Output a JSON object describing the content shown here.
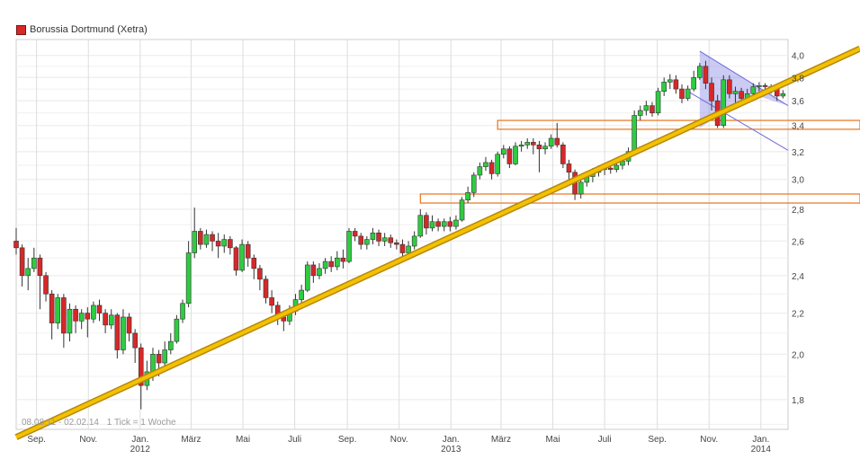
{
  "legend": {
    "label": "Borussia Dortmund (Xetra)",
    "color": "#d62828"
  },
  "footer": {
    "range": "08.08.11 - 02.02.14",
    "tick": "1 Tick = 1 Woche"
  },
  "colors": {
    "up": "#2ecc40",
    "down": "#d62828",
    "trend": "#f2c200",
    "triangle": "#6b6be0",
    "resistance": "#e8731a",
    "grid": "#dddddd"
  },
  "chart_data": {
    "type": "candlestick",
    "title": "Borussia Dortmund (Xetra)",
    "y_axis": {
      "scale": "log",
      "ticks": [
        "1,8",
        "2,0",
        "2,2",
        "2,4",
        "2,6",
        "2,8",
        "3,0",
        "3,2",
        "3,4",
        "3,6",
        "3,8",
        "4,0"
      ],
      "tick_values": [
        1.8,
        2.0,
        2.2,
        2.4,
        2.6,
        2.8,
        3.0,
        3.2,
        3.4,
        3.6,
        3.8,
        4.0
      ],
      "range": [
        1.68,
        4.15
      ]
    },
    "x_axis": {
      "ticks": [
        {
          "label": "Sep.",
          "date": "2011-09-01"
        },
        {
          "label": "Nov.",
          "date": "2011-11-01"
        },
        {
          "label": "Jan.",
          "sub": "2012",
          "date": "2012-01-01"
        },
        {
          "label": "März",
          "date": "2012-03-01"
        },
        {
          "label": "Mai",
          "date": "2012-05-01"
        },
        {
          "label": "Juli",
          "date": "2012-07-01"
        },
        {
          "label": "Sep.",
          "date": "2012-09-01"
        },
        {
          "label": "Nov.",
          "date": "2012-11-01"
        },
        {
          "label": "Jan.",
          "sub": "2013",
          "date": "2013-01-01"
        },
        {
          "label": "März",
          "date": "2013-03-01"
        },
        {
          "label": "Mai",
          "date": "2013-05-01"
        },
        {
          "label": "Juli",
          "date": "2013-07-01"
        },
        {
          "label": "Sep.",
          "date": "2013-09-01"
        },
        {
          "label": "Nov.",
          "date": "2013-11-01"
        },
        {
          "label": "Jan.",
          "sub": "2014",
          "date": "2014-01-01"
        }
      ],
      "range": [
        "2011-08-08",
        "2014-02-02"
      ]
    },
    "candles": [
      [
        "2011-08-08",
        2.6,
        2.56,
        2.68,
        2.52
      ],
      [
        "2011-08-15",
        2.56,
        2.4,
        2.58,
        2.34
      ],
      [
        "2011-08-22",
        2.4,
        2.44,
        2.5,
        2.32
      ],
      [
        "2011-08-29",
        2.44,
        2.5,
        2.56,
        2.42
      ],
      [
        "2011-09-05",
        2.5,
        2.4,
        2.52,
        2.22
      ],
      [
        "2011-09-12",
        2.4,
        2.3,
        2.42,
        2.26
      ],
      [
        "2011-09-19",
        2.3,
        2.15,
        2.32,
        2.07
      ],
      [
        "2011-09-26",
        2.15,
        2.28,
        2.3,
        2.12
      ],
      [
        "2011-10-03",
        2.28,
        2.1,
        2.3,
        2.03
      ],
      [
        "2011-10-10",
        2.1,
        2.22,
        2.25,
        2.06
      ],
      [
        "2011-10-17",
        2.22,
        2.16,
        2.24,
        2.1
      ],
      [
        "2011-10-24",
        2.16,
        2.2,
        2.22,
        2.12
      ],
      [
        "2011-10-31",
        2.2,
        2.17,
        2.23,
        2.08
      ],
      [
        "2011-11-07",
        2.17,
        2.24,
        2.26,
        2.15
      ],
      [
        "2011-11-14",
        2.24,
        2.2,
        2.27,
        2.16
      ],
      [
        "2011-11-21",
        2.2,
        2.14,
        2.22,
        2.1
      ],
      [
        "2011-11-28",
        2.14,
        2.19,
        2.22,
        2.12
      ],
      [
        "2011-12-05",
        2.19,
        2.02,
        2.2,
        1.98
      ],
      [
        "2011-12-12",
        2.02,
        2.18,
        2.22,
        2.0
      ],
      [
        "2011-12-19",
        2.18,
        2.1,
        2.2,
        2.06
      ],
      [
        "2011-12-26",
        2.1,
        2.03,
        2.12,
        1.96
      ],
      [
        "2012-01-02",
        2.03,
        1.86,
        2.05,
        1.76
      ],
      [
        "2012-01-09",
        1.86,
        1.92,
        1.97,
        1.84
      ],
      [
        "2012-01-16",
        1.92,
        2.0,
        2.03,
        1.88
      ],
      [
        "2012-01-23",
        2.0,
        1.96,
        2.02,
        1.9
      ],
      [
        "2012-01-30",
        1.96,
        2.02,
        2.06,
        1.94
      ],
      [
        "2012-02-06",
        2.02,
        2.06,
        2.1,
        2.0
      ],
      [
        "2012-02-13",
        2.06,
        2.17,
        2.19,
        2.05
      ],
      [
        "2012-02-20",
        2.17,
        2.25,
        2.27,
        2.15
      ],
      [
        "2012-02-27",
        2.25,
        2.53,
        2.6,
        2.23
      ],
      [
        "2012-03-05",
        2.53,
        2.66,
        2.81,
        2.5
      ],
      [
        "2012-03-12",
        2.66,
        2.58,
        2.68,
        2.55
      ],
      [
        "2012-03-19",
        2.58,
        2.64,
        2.67,
        2.56
      ],
      [
        "2012-03-26",
        2.64,
        2.6,
        2.66,
        2.54
      ],
      [
        "2012-04-02",
        2.6,
        2.57,
        2.65,
        2.5
      ],
      [
        "2012-04-09",
        2.57,
        2.61,
        2.64,
        2.53
      ],
      [
        "2012-04-16",
        2.61,
        2.56,
        2.63,
        2.52
      ],
      [
        "2012-04-23",
        2.56,
        2.43,
        2.57,
        2.4
      ],
      [
        "2012-04-30",
        2.43,
        2.58,
        2.61,
        2.42
      ],
      [
        "2012-05-07",
        2.58,
        2.5,
        2.6,
        2.45
      ],
      [
        "2012-05-14",
        2.5,
        2.44,
        2.52,
        2.38
      ],
      [
        "2012-05-21",
        2.44,
        2.38,
        2.46,
        2.32
      ],
      [
        "2012-05-28",
        2.38,
        2.28,
        2.4,
        2.25
      ],
      [
        "2012-06-04",
        2.28,
        2.24,
        2.32,
        2.2
      ],
      [
        "2012-06-11",
        2.24,
        2.18,
        2.26,
        2.14
      ],
      [
        "2012-06-18",
        2.18,
        2.16,
        2.2,
        2.11
      ],
      [
        "2012-06-25",
        2.16,
        2.21,
        2.24,
        2.14
      ],
      [
        "2012-07-02",
        2.21,
        2.27,
        2.3,
        2.19
      ],
      [
        "2012-07-09",
        2.27,
        2.32,
        2.35,
        2.24
      ],
      [
        "2012-07-16",
        2.32,
        2.46,
        2.48,
        2.31
      ],
      [
        "2012-07-23",
        2.46,
        2.4,
        2.48,
        2.36
      ],
      [
        "2012-07-30",
        2.4,
        2.44,
        2.47,
        2.38
      ],
      [
        "2012-08-06",
        2.44,
        2.48,
        2.5,
        2.41
      ],
      [
        "2012-08-13",
        2.48,
        2.45,
        2.51,
        2.42
      ],
      [
        "2012-08-20",
        2.45,
        2.5,
        2.54,
        2.43
      ],
      [
        "2012-08-27",
        2.5,
        2.48,
        2.55,
        2.44
      ],
      [
        "2012-09-03",
        2.48,
        2.66,
        2.68,
        2.47
      ],
      [
        "2012-09-10",
        2.66,
        2.63,
        2.68,
        2.6
      ],
      [
        "2012-09-17",
        2.63,
        2.58,
        2.65,
        2.55
      ],
      [
        "2012-09-24",
        2.58,
        2.61,
        2.63,
        2.55
      ],
      [
        "2012-10-01",
        2.61,
        2.65,
        2.68,
        2.58
      ],
      [
        "2012-10-08",
        2.65,
        2.6,
        2.67,
        2.57
      ],
      [
        "2012-10-15",
        2.6,
        2.62,
        2.65,
        2.57
      ],
      [
        "2012-10-22",
        2.62,
        2.59,
        2.64,
        2.56
      ],
      [
        "2012-10-29",
        2.59,
        2.58,
        2.61,
        2.55
      ],
      [
        "2012-11-05",
        2.58,
        2.53,
        2.61,
        2.48
      ],
      [
        "2012-11-12",
        2.53,
        2.57,
        2.6,
        2.52
      ],
      [
        "2012-11-19",
        2.57,
        2.63,
        2.66,
        2.55
      ],
      [
        "2012-11-26",
        2.63,
        2.76,
        2.8,
        2.62
      ],
      [
        "2012-12-03",
        2.76,
        2.68,
        2.78,
        2.64
      ],
      [
        "2012-12-10",
        2.68,
        2.72,
        2.76,
        2.66
      ],
      [
        "2012-12-17",
        2.72,
        2.69,
        2.74,
        2.66
      ],
      [
        "2012-12-24",
        2.69,
        2.72,
        2.74,
        2.66
      ],
      [
        "2012-12-31",
        2.72,
        2.69,
        2.75,
        2.66
      ],
      [
        "2013-01-07",
        2.69,
        2.73,
        2.76,
        2.67
      ],
      [
        "2013-01-14",
        2.73,
        2.86,
        2.88,
        2.72
      ],
      [
        "2013-01-21",
        2.86,
        2.91,
        2.95,
        2.84
      ],
      [
        "2013-01-28",
        2.91,
        3.03,
        3.05,
        2.88
      ],
      [
        "2013-02-04",
        3.03,
        3.09,
        3.12,
        3.0
      ],
      [
        "2013-02-11",
        3.09,
        3.12,
        3.16,
        3.06
      ],
      [
        "2013-02-18",
        3.12,
        3.04,
        3.14,
        3.0
      ],
      [
        "2013-02-25",
        3.04,
        3.18,
        3.2,
        3.02
      ],
      [
        "2013-03-04",
        3.18,
        3.22,
        3.25,
        3.15
      ],
      [
        "2013-03-11",
        3.22,
        3.11,
        3.24,
        3.08
      ],
      [
        "2013-03-18",
        3.11,
        3.24,
        3.27,
        3.1
      ],
      [
        "2013-03-25",
        3.24,
        3.25,
        3.28,
        3.2
      ],
      [
        "2013-04-01",
        3.25,
        3.27,
        3.3,
        3.22
      ],
      [
        "2013-04-08",
        3.27,
        3.25,
        3.3,
        3.18
      ],
      [
        "2013-04-15",
        3.25,
        3.22,
        3.28,
        3.05
      ],
      [
        "2013-04-22",
        3.22,
        3.24,
        3.27,
        3.18
      ],
      [
        "2013-04-29",
        3.24,
        3.3,
        3.33,
        3.22
      ],
      [
        "2013-05-06",
        3.3,
        3.25,
        3.42,
        3.23
      ],
      [
        "2013-05-13",
        3.25,
        3.11,
        3.27,
        3.08
      ],
      [
        "2013-05-20",
        3.11,
        3.05,
        3.14,
        3.0
      ],
      [
        "2013-05-27",
        3.05,
        2.9,
        3.07,
        2.86
      ],
      [
        "2013-06-03",
        2.9,
        2.98,
        3.01,
        2.87
      ],
      [
        "2013-06-10",
        2.98,
        3.02,
        3.05,
        2.95
      ],
      [
        "2013-06-17",
        3.02,
        3.05,
        3.08,
        2.98
      ],
      [
        "2013-06-24",
        3.05,
        3.07,
        3.1,
        3.02
      ],
      [
        "2013-07-01",
        3.07,
        3.08,
        3.11,
        3.03
      ],
      [
        "2013-07-08",
        3.08,
        3.07,
        3.11,
        3.04
      ],
      [
        "2013-07-15",
        3.07,
        3.1,
        3.13,
        3.05
      ],
      [
        "2013-07-22",
        3.1,
        3.13,
        3.16,
        3.07
      ],
      [
        "2013-07-29",
        3.13,
        3.2,
        3.23,
        3.1
      ],
      [
        "2013-08-05",
        3.2,
        3.48,
        3.52,
        3.18
      ],
      [
        "2013-08-12",
        3.48,
        3.52,
        3.56,
        3.44
      ],
      [
        "2013-08-19",
        3.52,
        3.56,
        3.6,
        3.48
      ],
      [
        "2013-08-26",
        3.56,
        3.5,
        3.59,
        3.47
      ],
      [
        "2013-09-02",
        3.5,
        3.68,
        3.71,
        3.48
      ],
      [
        "2013-09-09",
        3.68,
        3.76,
        3.8,
        3.64
      ],
      [
        "2013-09-16",
        3.76,
        3.78,
        3.83,
        3.7
      ],
      [
        "2013-09-23",
        3.78,
        3.7,
        3.82,
        3.66
      ],
      [
        "2013-09-30",
        3.7,
        3.62,
        3.74,
        3.58
      ],
      [
        "2013-10-07",
        3.62,
        3.7,
        3.73,
        3.6
      ],
      [
        "2013-10-14",
        3.7,
        3.8,
        3.86,
        3.68
      ],
      [
        "2013-10-21",
        3.8,
        3.9,
        3.93,
        3.78
      ],
      [
        "2013-10-28",
        3.9,
        3.75,
        3.95,
        3.7
      ],
      [
        "2013-11-04",
        3.75,
        3.6,
        3.8,
        3.52
      ],
      [
        "2013-11-11",
        3.6,
        3.4,
        3.65,
        3.38
      ],
      [
        "2013-11-18",
        3.4,
        3.78,
        3.82,
        3.38
      ],
      [
        "2013-11-25",
        3.78,
        3.66,
        3.82,
        3.62
      ],
      [
        "2013-12-02",
        3.66,
        3.68,
        3.72,
        3.58
      ],
      [
        "2013-12-09",
        3.68,
        3.62,
        3.71,
        3.58
      ],
      [
        "2013-12-16",
        3.62,
        3.66,
        3.7,
        3.58
      ],
      [
        "2013-12-23",
        3.66,
        3.72,
        3.75,
        3.63
      ],
      [
        "2013-12-30",
        3.72,
        3.73,
        3.76,
        3.68
      ],
      [
        "2014-01-06",
        3.73,
        3.72,
        3.75,
        3.69
      ],
      [
        "2014-01-13",
        3.72,
        3.7,
        3.74,
        3.66
      ],
      [
        "2014-01-20",
        3.7,
        3.64,
        3.72,
        3.6
      ],
      [
        "2014-01-27",
        3.64,
        3.66,
        3.69,
        3.62
      ]
    ],
    "candle_fields": [
      "week",
      "open",
      "close",
      "high",
      "low"
    ],
    "trendline": [
      [
        "2011-08-08",
        1.65
      ],
      [
        "2014-02-02",
        3.98
      ]
    ],
    "triangle": {
      "upper": [
        [
          "2013-10-21",
          4.04
        ],
        [
          "2014-02-02",
          3.56
        ]
      ],
      "lower": [
        [
          "2013-10-07",
          3.68
        ],
        [
          "2014-02-02",
          3.21
        ]
      ],
      "shaded_from": "2013-10-21"
    },
    "resistance_zones": [
      {
        "from": "2012-11-26",
        "y1": 2.84,
        "y2": 2.9
      },
      {
        "from": "2013-02-25",
        "y1": 3.37,
        "y2": 3.44
      }
    ],
    "grid": true
  }
}
